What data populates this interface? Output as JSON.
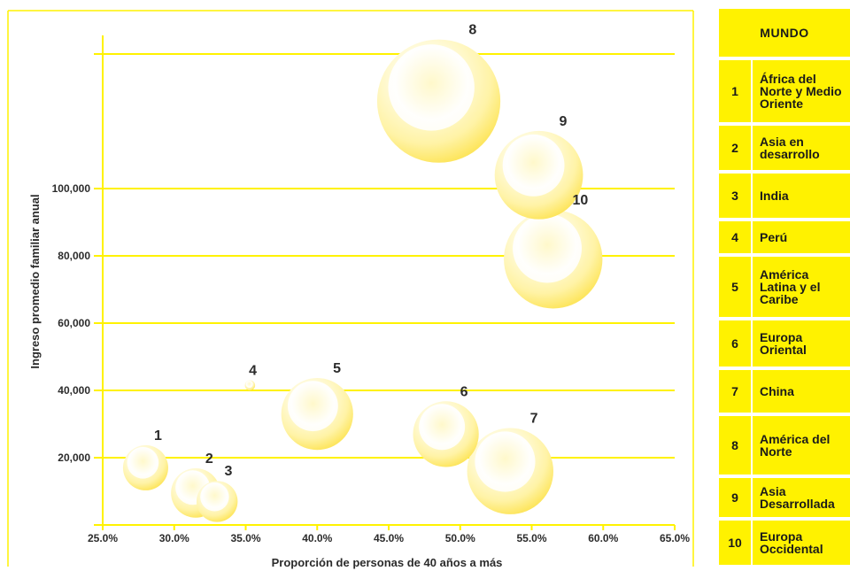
{
  "chart_data": {
    "type": "scatter",
    "title": "",
    "xlabel": "Proporción de personas de 40 años a más",
    "ylabel": "Ingreso promedio familiar anual",
    "xlim": [
      25,
      65
    ],
    "ylim": [
      0,
      140000
    ],
    "grid": true,
    "x_ticks": [
      "25.0%",
      "30.0%",
      "35.0%",
      "40.0%",
      "45.0%",
      "50.0%",
      "55.0%",
      "60.0%",
      "65.0%"
    ],
    "x_tick_values": [
      25,
      30,
      35,
      40,
      45,
      50,
      55,
      60,
      65
    ],
    "y_ticks": [
      "20,000",
      "40,000",
      "60,000",
      "80,000",
      "100,000"
    ],
    "y_tick_values": [
      20000,
      40000,
      60000,
      80000,
      100000
    ],
    "points": [
      {
        "id": "1",
        "x": 28.0,
        "y": 17000,
        "size": 2.2
      },
      {
        "id": "2",
        "x": 31.5,
        "y": 9500,
        "size": 2.4
      },
      {
        "id": "3",
        "x": 33.0,
        "y": 7000,
        "size": 2.0
      },
      {
        "id": "4",
        "x": 35.3,
        "y": 41500,
        "size": 0.5
      },
      {
        "id": "5",
        "x": 40.0,
        "y": 33000,
        "size": 3.5
      },
      {
        "id": "6",
        "x": 49.0,
        "y": 27000,
        "size": 3.2
      },
      {
        "id": "7",
        "x": 53.5,
        "y": 16000,
        "size": 4.2
      },
      {
        "id": "8",
        "x": 48.5,
        "y": 126000,
        "size": 6.0
      },
      {
        "id": "9",
        "x": 55.5,
        "y": 104000,
        "size": 4.3
      },
      {
        "id": "10",
        "x": 56.5,
        "y": 79000,
        "size": 4.8
      }
    ],
    "colors": {
      "grid": "#fff200",
      "bubble": "#fff3a6",
      "bubble_edge": "#fde04d",
      "axis_text": "#2b2b2b"
    }
  },
  "legend": {
    "header": "MUNDO",
    "items": [
      {
        "num": "1",
        "label": "África del\nNorte y Medio\nOriente"
      },
      {
        "num": "2",
        "label": "Asia en\ndesarrollo"
      },
      {
        "num": "3",
        "label": "India"
      },
      {
        "num": "4",
        "label": "Perú"
      },
      {
        "num": "5",
        "label": "América\nLatina y el\nCaribe"
      },
      {
        "num": "6",
        "label": "Europa\nOriental"
      },
      {
        "num": "7",
        "label": "China"
      },
      {
        "num": "8",
        "label": "América del\nNorte"
      },
      {
        "num": "9",
        "label": "Asia\nDesarrollada"
      },
      {
        "num": "10",
        "label": "Europa\nOccidental"
      }
    ]
  }
}
